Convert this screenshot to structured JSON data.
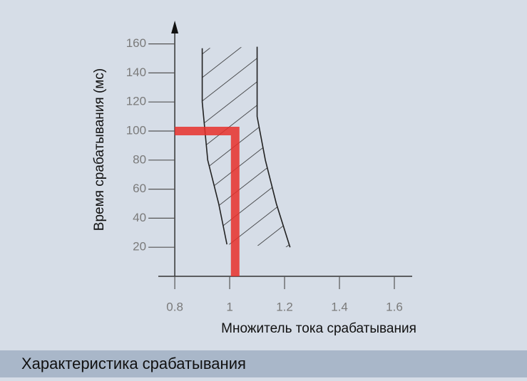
{
  "chart_data": {
    "type": "line",
    "x_label": "Множитель тока срабатывания",
    "y_label": "Время срабатывания (мс)",
    "caption": "Характеристика срабатывания",
    "xlim": [
      0.74,
      1.665
    ],
    "ylim": [
      0,
      175
    ],
    "xticks": [
      0.8,
      1,
      1.2,
      1.4,
      1.6
    ],
    "yticks": [
      20,
      40,
      60,
      80,
      100,
      120,
      140,
      160
    ],
    "series": [
      {
        "color": "#e8302a",
        "x": [
          0.8,
          1.02,
          1.02
        ],
        "values": [
          100,
          100,
          0
        ]
      },
      {
        "color": "#222222",
        "x": [
          0.9,
          0.9,
          0.92,
          0.96,
          0.99
        ],
        "values": [
          157,
          120,
          80,
          50,
          22
        ]
      },
      {
        "color": "#222222",
        "x": [
          1.1,
          1.1,
          1.13,
          1.17,
          1.22
        ],
        "values": [
          158,
          110,
          80,
          50,
          20
        ]
      }
    ]
  }
}
